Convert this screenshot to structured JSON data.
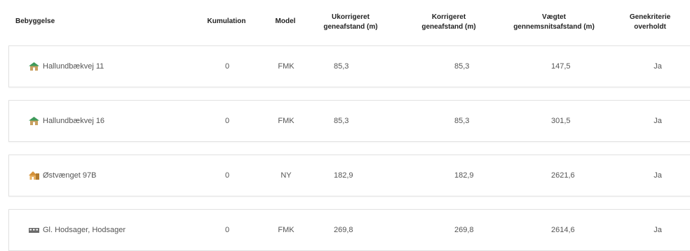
{
  "headers": {
    "bebyggelse": "Bebyggelse",
    "kumulation": "Kumulation",
    "model": "Model",
    "ukorrigeret_line1": "Ukorrigeret",
    "ukorrigeret_line2": "geneafstand (m)",
    "korrigeret_line1": "Korrigeret",
    "korrigeret_line2": "geneafstand (m)",
    "vaegtet_line1": "Vægtet",
    "vaegtet_line2": "gennemsnitsafstand (m)",
    "genekriterie_line1": "Genekriterie",
    "genekriterie_line2": "overholdt"
  },
  "rows": [
    {
      "icon": "house-icon",
      "name": "Hallundbækvej 11",
      "kumulation": "0",
      "model": "FMK",
      "ukorrigeret": "85,3",
      "korrigeret": "85,3",
      "vaegtet": "147,5",
      "overholdt": "Ja"
    },
    {
      "icon": "house-icon",
      "name": "Hallundbækvej 16",
      "kumulation": "0",
      "model": "FMK",
      "ukorrigeret": "85,3",
      "korrigeret": "85,3",
      "vaegtet": "301,5",
      "overholdt": "Ja"
    },
    {
      "icon": "cottage-icon",
      "name": "Østvænget 97B",
      "kumulation": "0",
      "model": "NY",
      "ukorrigeret": "182,9",
      "korrigeret": "182,9",
      "vaegtet": "2621,6",
      "overholdt": "Ja"
    },
    {
      "icon": "town-icon",
      "name": "Gl. Hodsager, Hodsager",
      "kumulation": "0",
      "model": "FMK",
      "ukorrigeret": "269,8",
      "korrigeret": "269,8",
      "vaegtet": "2614,6",
      "overholdt": "Ja"
    }
  ],
  "colors": {
    "house": "#c9a060",
    "roof": "#3f9a5a",
    "cottage": "#d4913a",
    "town": "#6b6b6b"
  }
}
